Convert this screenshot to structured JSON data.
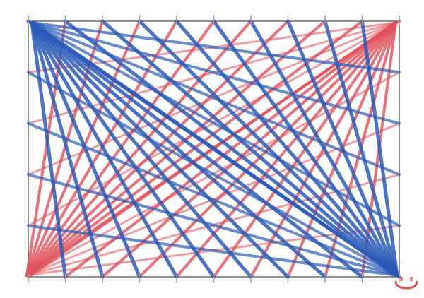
{
  "drawing": {
    "colors": {
      "blue": "#2a5bb8",
      "red": "#e0505a",
      "frame": "#222222",
      "pencil": "#9a9a9a"
    },
    "top_points": 11,
    "bottom_points": 11,
    "smiley_icon": "smiley-face"
  }
}
